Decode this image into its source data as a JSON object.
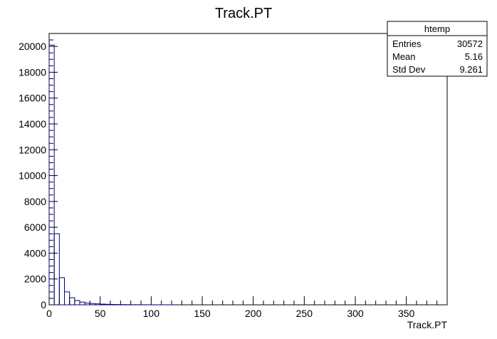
{
  "chart_data": {
    "type": "bar",
    "title": "Track.PT",
    "xlabel": "Track.PT",
    "ylabel": "",
    "xlim": [
      0,
      390
    ],
    "ylim": [
      0,
      21000
    ],
    "x_ticks": [
      0,
      50,
      100,
      150,
      200,
      250,
      300,
      350
    ],
    "y_ticks": [
      0,
      2000,
      4000,
      6000,
      8000,
      10000,
      12000,
      14000,
      16000,
      18000,
      20000
    ],
    "bin_width": 5,
    "bins": [
      {
        "x": 0,
        "value": 20100
      },
      {
        "x": 5,
        "value": 5500
      },
      {
        "x": 10,
        "value": 2100
      },
      {
        "x": 15,
        "value": 1000
      },
      {
        "x": 20,
        "value": 550
      },
      {
        "x": 25,
        "value": 330
      },
      {
        "x": 30,
        "value": 210
      },
      {
        "x": 35,
        "value": 140
      },
      {
        "x": 40,
        "value": 100
      },
      {
        "x": 45,
        "value": 75
      },
      {
        "x": 50,
        "value": 55
      },
      {
        "x": 55,
        "value": 40
      },
      {
        "x": 60,
        "value": 30
      },
      {
        "x": 65,
        "value": 22
      },
      {
        "x": 70,
        "value": 16
      },
      {
        "x": 75,
        "value": 12
      },
      {
        "x": 80,
        "value": 9
      },
      {
        "x": 85,
        "value": 7
      },
      {
        "x": 90,
        "value": 5
      },
      {
        "x": 95,
        "value": 4
      },
      {
        "x": 100,
        "value": 3
      },
      {
        "x": 105,
        "value": 2
      },
      {
        "x": 110,
        "value": 2
      },
      {
        "x": 115,
        "value": 1
      },
      {
        "x": 120,
        "value": 1
      }
    ],
    "line_color": "#000080",
    "grid": false,
    "stats_box": {
      "name": "htemp",
      "entries_label": "Entries",
      "entries_value": "30572",
      "mean_label": "Mean",
      "mean_value": "5.16",
      "stddev_label": "Std Dev",
      "stddev_value": "9.261"
    }
  }
}
